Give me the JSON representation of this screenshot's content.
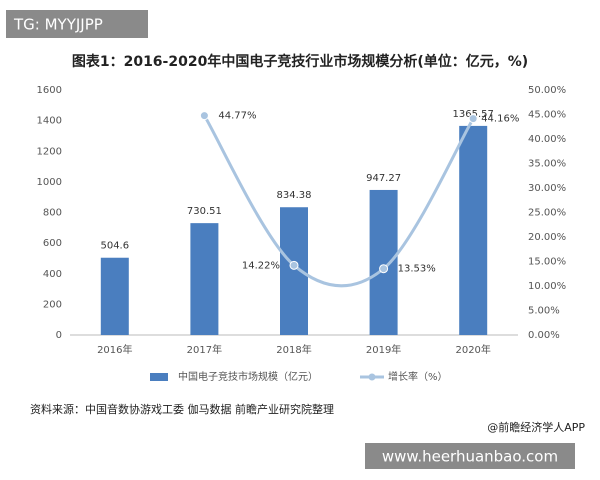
{
  "badge": "TG: MYYJJPP",
  "chart_data": {
    "type": "bar",
    "title": "图表1：2016-2020年中国电子竞技行业市场规模分析(单位：亿元，%)",
    "categories": [
      "2016年",
      "2017年",
      "2018年",
      "2019年",
      "2020年"
    ],
    "series": [
      {
        "name": "中国电子竞技市场规模（亿元）",
        "type": "bar",
        "color": "#4a7ebf",
        "values": [
          504.6,
          730.51,
          834.38,
          947.27,
          1365.57
        ]
      },
      {
        "name": "增长率（%）",
        "type": "line",
        "axis": "y2",
        "color": "#a9c4e0",
        "values": [
          null,
          44.77,
          14.22,
          13.53,
          44.16
        ],
        "value_labels": [
          null,
          "44.77%",
          "14.22%",
          "13.53%",
          "44.16%"
        ]
      }
    ],
    "ylim": [
      0,
      1600
    ],
    "yticks": [
      0,
      200,
      400,
      600,
      800,
      1000,
      1200,
      1400,
      1600
    ],
    "y2lim": [
      0,
      50
    ],
    "y2ticks": [
      {
        "value": 0,
        "label": "0.00%"
      },
      {
        "value": 5,
        "label": "5.00%"
      },
      {
        "value": 10,
        "label": "10.00%"
      },
      {
        "value": 15,
        "label": "15.00%"
      },
      {
        "value": 20,
        "label": "20.00%"
      },
      {
        "value": 25,
        "label": "25.00%"
      },
      {
        "value": 30,
        "label": "30.00%"
      },
      {
        "value": 35,
        "label": "35.00%"
      },
      {
        "value": 40,
        "label": "40.00%"
      },
      {
        "value": 45,
        "label": "45.00%"
      },
      {
        "value": 50,
        "label": "50.00%"
      }
    ],
    "grid": false,
    "legend": "bottom"
  },
  "source": "资料来源：中国音数协游戏工委 伽马数据 前瞻产业研究院整理",
  "credit": "@前瞻经济学人APP",
  "watermark": "www.heerhuanbao.com"
}
